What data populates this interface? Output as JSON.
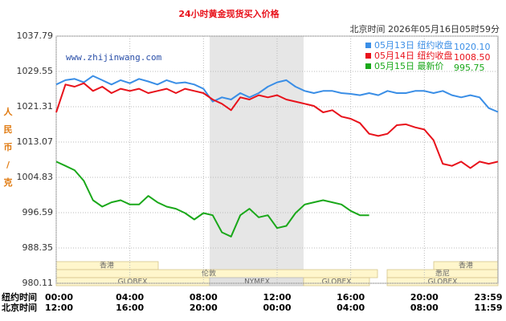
{
  "chart_data": {
    "type": "line",
    "title": "24小时黄金现货买入价格",
    "timestamp": "北京时间 2026年05月16日05时59分",
    "watermark": "www.zhijinwang.com",
    "y_label": "人民币/克",
    "x_row_labels": [
      "纽约时间",
      "北京时间"
    ],
    "sessions": [
      "香港",
      "香港",
      "伦敦",
      "悉尼",
      "GLOBEX",
      "NYMEX",
      "GLOBEX",
      "GLOBEX"
    ],
    "xlim": [
      0,
      24
    ],
    "xticks": [
      {
        "value": 0,
        "label": "00:00",
        "beijing": "12:00"
      },
      {
        "value": 4,
        "label": "04:00",
        "beijing": "16:00"
      },
      {
        "value": 8,
        "label": "08:00",
        "beijing": "20:00"
      },
      {
        "value": 12,
        "label": "12:00",
        "beijing": "00:00"
      },
      {
        "value": 16,
        "label": "16:00",
        "beijing": "04:00"
      },
      {
        "value": 20,
        "label": "20:00",
        "beijing": "08:00"
      },
      {
        "value": 23.98,
        "label": "23:59",
        "beijing": "11:59"
      }
    ],
    "ylim": [
      980.11,
      1037.79
    ],
    "yticks": [
      980.11,
      988.35,
      996.59,
      1004.83,
      1013.07,
      1021.31,
      1029.55,
      1037.79
    ],
    "grid": true,
    "x": [
      0,
      0.5,
      1,
      1.5,
      2,
      2.5,
      3,
      3.5,
      4,
      4.5,
      5,
      5.5,
      6,
      6.5,
      7,
      7.5,
      8,
      8.5,
      9,
      9.5,
      10,
      10.5,
      11,
      11.5,
      12,
      12.5,
      13,
      13.5,
      14,
      14.5,
      15,
      15.5,
      16,
      16.5,
      17,
      17.5,
      18,
      18.5,
      19,
      19.5,
      20,
      20.5,
      21,
      21.5,
      22,
      22.5,
      23,
      23.5,
      24
    ],
    "series": [
      {
        "name": "05月13日 纽约收盘",
        "color": "#3a8ee6",
        "legend_value": {
          "value": 1020.1,
          "label": "1020.10"
        },
        "values": [
          1026.5,
          1027.5,
          1027.8,
          1027,
          1028.5,
          1027.5,
          1026.5,
          1027.5,
          1026.8,
          1027.8,
          1027.2,
          1026.5,
          1027.5,
          1026.8,
          1027,
          1026.5,
          1025.5,
          1022.5,
          1023.5,
          1023,
          1024.5,
          1023.5,
          1024.5,
          1026,
          1027,
          1027.5,
          1026,
          1025,
          1024.5,
          1025,
          1025,
          1024.5,
          1024.3,
          1024,
          1024.5,
          1024,
          1025,
          1024.5,
          1024.5,
          1025,
          1025,
          1024.5,
          1025,
          1024,
          1023.5,
          1024,
          1023.5,
          1021,
          1020.1
        ]
      },
      {
        "name": "05月14日 纽约收盘",
        "color": "#e8121b",
        "legend_value": {
          "value": 1008.5,
          "label": "1008.50"
        },
        "values": [
          1020,
          1026.5,
          1026,
          1026.8,
          1025,
          1026,
          1024.5,
          1025.5,
          1025,
          1025.5,
          1024.5,
          1025,
          1025.5,
          1024.5,
          1025.5,
          1025,
          1024.5,
          1023,
          1022,
          1020.5,
          1023.5,
          1023,
          1024,
          1023.5,
          1024,
          1023,
          1022.5,
          1022,
          1021.5,
          1020,
          1020.5,
          1019,
          1018.5,
          1017.5,
          1015,
          1014.5,
          1015,
          1017,
          1017.2,
          1016.5,
          1016,
          1013.5,
          1008,
          1007.5,
          1008.5,
          1007,
          1008.5,
          1008,
          1008.5
        ]
      },
      {
        "name": "05月15日 最新价",
        "color": "#1aa81a",
        "legend_value": {
          "value": 995.75,
          "label": "995.75"
        },
        "values": [
          1008.5,
          1007.5,
          1006.5,
          1004,
          999.5,
          998,
          999,
          999.5,
          998.5,
          998.5,
          1000.5,
          999,
          998,
          997.5,
          996.5,
          995,
          996.5,
          996,
          992,
          991,
          996,
          997.5,
          995.5,
          996,
          993,
          993.5,
          996.5,
          998.5,
          999,
          999.5,
          999,
          998.5,
          997,
          996,
          996,
          null,
          null,
          null,
          null,
          null,
          null,
          null,
          null,
          null,
          null,
          null,
          null,
          null,
          null
        ]
      }
    ]
  }
}
